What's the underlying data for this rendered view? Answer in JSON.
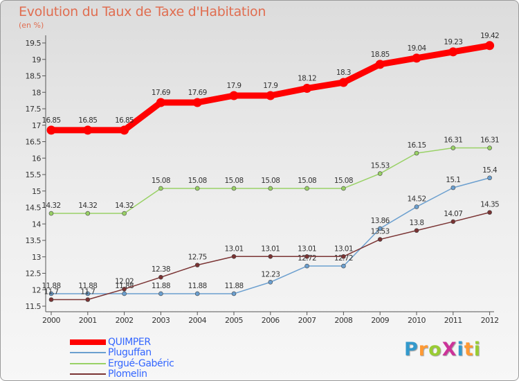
{
  "chart_data": {
    "type": "line",
    "title": "Evolution du Taux de Taxe d'Habitation",
    "subtitle": "(en %)",
    "categories": [
      "2000",
      "2001",
      "2002",
      "2003",
      "2004",
      "2005",
      "2006",
      "2007",
      "2008",
      "2009",
      "2010",
      "2011",
      "2012"
    ],
    "ylim": [
      11.5,
      19.5
    ],
    "yticks": [
      "11.5",
      "12",
      "12.5",
      "13",
      "13.5",
      "14",
      "14.5",
      "15",
      "15.5",
      "16",
      "16.5",
      "17",
      "17.5",
      "18",
      "18.5",
      "19",
      "19.5"
    ],
    "grid": false,
    "legend_position": "bottom-left",
    "series": [
      {
        "name": "QUIMPER",
        "color": "#ff0000",
        "thick": true,
        "values": [
          16.85,
          16.85,
          16.85,
          17.69,
          17.69,
          17.9,
          17.9,
          18.12,
          18.3,
          18.85,
          19.04,
          19.23,
          19.42
        ],
        "labels": [
          "16.85",
          "16.85",
          "16.85",
          "17.69",
          "17.69",
          "17.9",
          "17.9",
          "18.12",
          "18.3",
          "18.85",
          "19.04",
          "19.23",
          "19.42"
        ]
      },
      {
        "name": "Pluguffan",
        "color": "#6b9fcf",
        "values": [
          11.88,
          11.88,
          11.88,
          11.88,
          11.88,
          11.88,
          12.23,
          12.72,
          12.72,
          13.86,
          14.52,
          15.1,
          15.4
        ],
        "labels": [
          "11.88",
          "11.88",
          "11.88",
          "11.88",
          "11.88",
          "11.88",
          "12.23",
          "12.72",
          "12.72",
          "13.86",
          "14.52",
          "15.1",
          "15.4"
        ]
      },
      {
        "name": "Ergué-Gabéric",
        "color": "#99d166",
        "values": [
          14.32,
          14.32,
          14.32,
          15.08,
          15.08,
          15.08,
          15.08,
          15.08,
          15.08,
          15.53,
          16.15,
          16.31,
          16.31
        ],
        "labels": [
          "14.32",
          "14.32",
          "14.32",
          "15.08",
          "15.08",
          "15.08",
          "15.08",
          "15.08",
          "15.08",
          "15.53",
          "16.15",
          "16.31",
          "16.31"
        ]
      },
      {
        "name": "Plomelin",
        "color": "#7a3333",
        "values": [
          11.7,
          11.7,
          12.02,
          12.38,
          12.75,
          13.01,
          13.01,
          13.01,
          13.01,
          13.53,
          13.8,
          14.07,
          14.35
        ],
        "labels": [
          "11.7",
          "11.7",
          "12.02",
          "12.38",
          "12.75",
          "13.01",
          "13.01",
          "13.01",
          "13.01",
          "13.53",
          "13.8",
          "14.07",
          "14.35"
        ]
      }
    ]
  },
  "legend": {
    "items": [
      {
        "label": "QUIMPER",
        "color": "#ff0000",
        "text_color": "#3366ff"
      },
      {
        "label": "Pluguffan",
        "color": "#6b9fcf",
        "text_color": "#3366ff"
      },
      {
        "label": "Ergué-Gabéric",
        "color": "#99d166",
        "text_color": "#3366ff"
      },
      {
        "label": "Plomelin",
        "color": "#7a3333",
        "text_color": "#3366ff"
      }
    ]
  },
  "logo": {
    "text": "ProXiti",
    "letter_colors": [
      "#3399cc",
      "#ff9933",
      "#99cc33",
      "#cc3399",
      "#3399cc",
      "#ff9933",
      "#99cc33"
    ]
  }
}
